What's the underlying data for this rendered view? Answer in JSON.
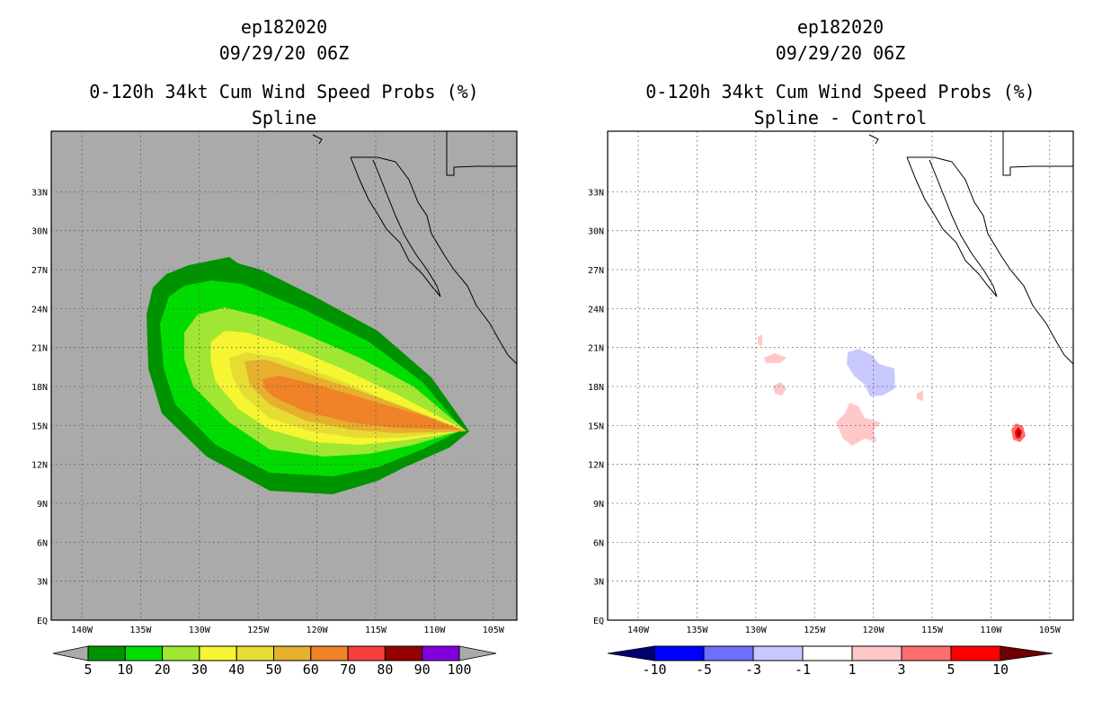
{
  "panels": [
    {
      "id": "left",
      "title_lines": [
        "ep182020",
        "09/29/20 06Z",
        "0-120h 34kt Cum Wind Speed Probs (%)",
        "Spline"
      ],
      "background": "#aaaaaa",
      "colorbar": {
        "labels": [
          "5",
          "10",
          "20",
          "30",
          "40",
          "50",
          "60",
          "70",
          "80",
          "90",
          "100"
        ],
        "colors": [
          "#009300",
          "#00dc00",
          "#a0e632",
          "#f5f532",
          "#e6dc32",
          "#e6af2d",
          "#f08228",
          "#fa3c3c",
          "#960000",
          "#8200dc"
        ],
        "under_color": "#aaaaaa",
        "over_color": "#aaaaaa"
      }
    },
    {
      "id": "right",
      "title_lines": [
        "ep182020",
        "09/29/20 06Z",
        "0-120h 34kt Cum Wind Speed Probs (%)",
        "Spline - Control"
      ],
      "background": "#ffffff",
      "colorbar": {
        "labels": [
          "-10",
          "-5",
          "-3",
          "-1",
          "1",
          "3",
          "5",
          "10"
        ],
        "colors": [
          "#0000ff",
          "#6e6eff",
          "#c8c8ff",
          "#ffffff",
          "#ffc8c8",
          "#ff6e6e",
          "#ff0000"
        ],
        "under_color": "#00006e",
        "over_color": "#6e0000"
      }
    }
  ],
  "axes": {
    "lon_labels": [
      "140W",
      "135W",
      "130W",
      "125W",
      "120W",
      "115W",
      "110W",
      "105W"
    ],
    "lat_labels": [
      "EQ",
      "3N",
      "6N",
      "9N",
      "12N",
      "15N",
      "18N",
      "21N",
      "24N",
      "27N",
      "30N",
      "33N"
    ]
  }
}
